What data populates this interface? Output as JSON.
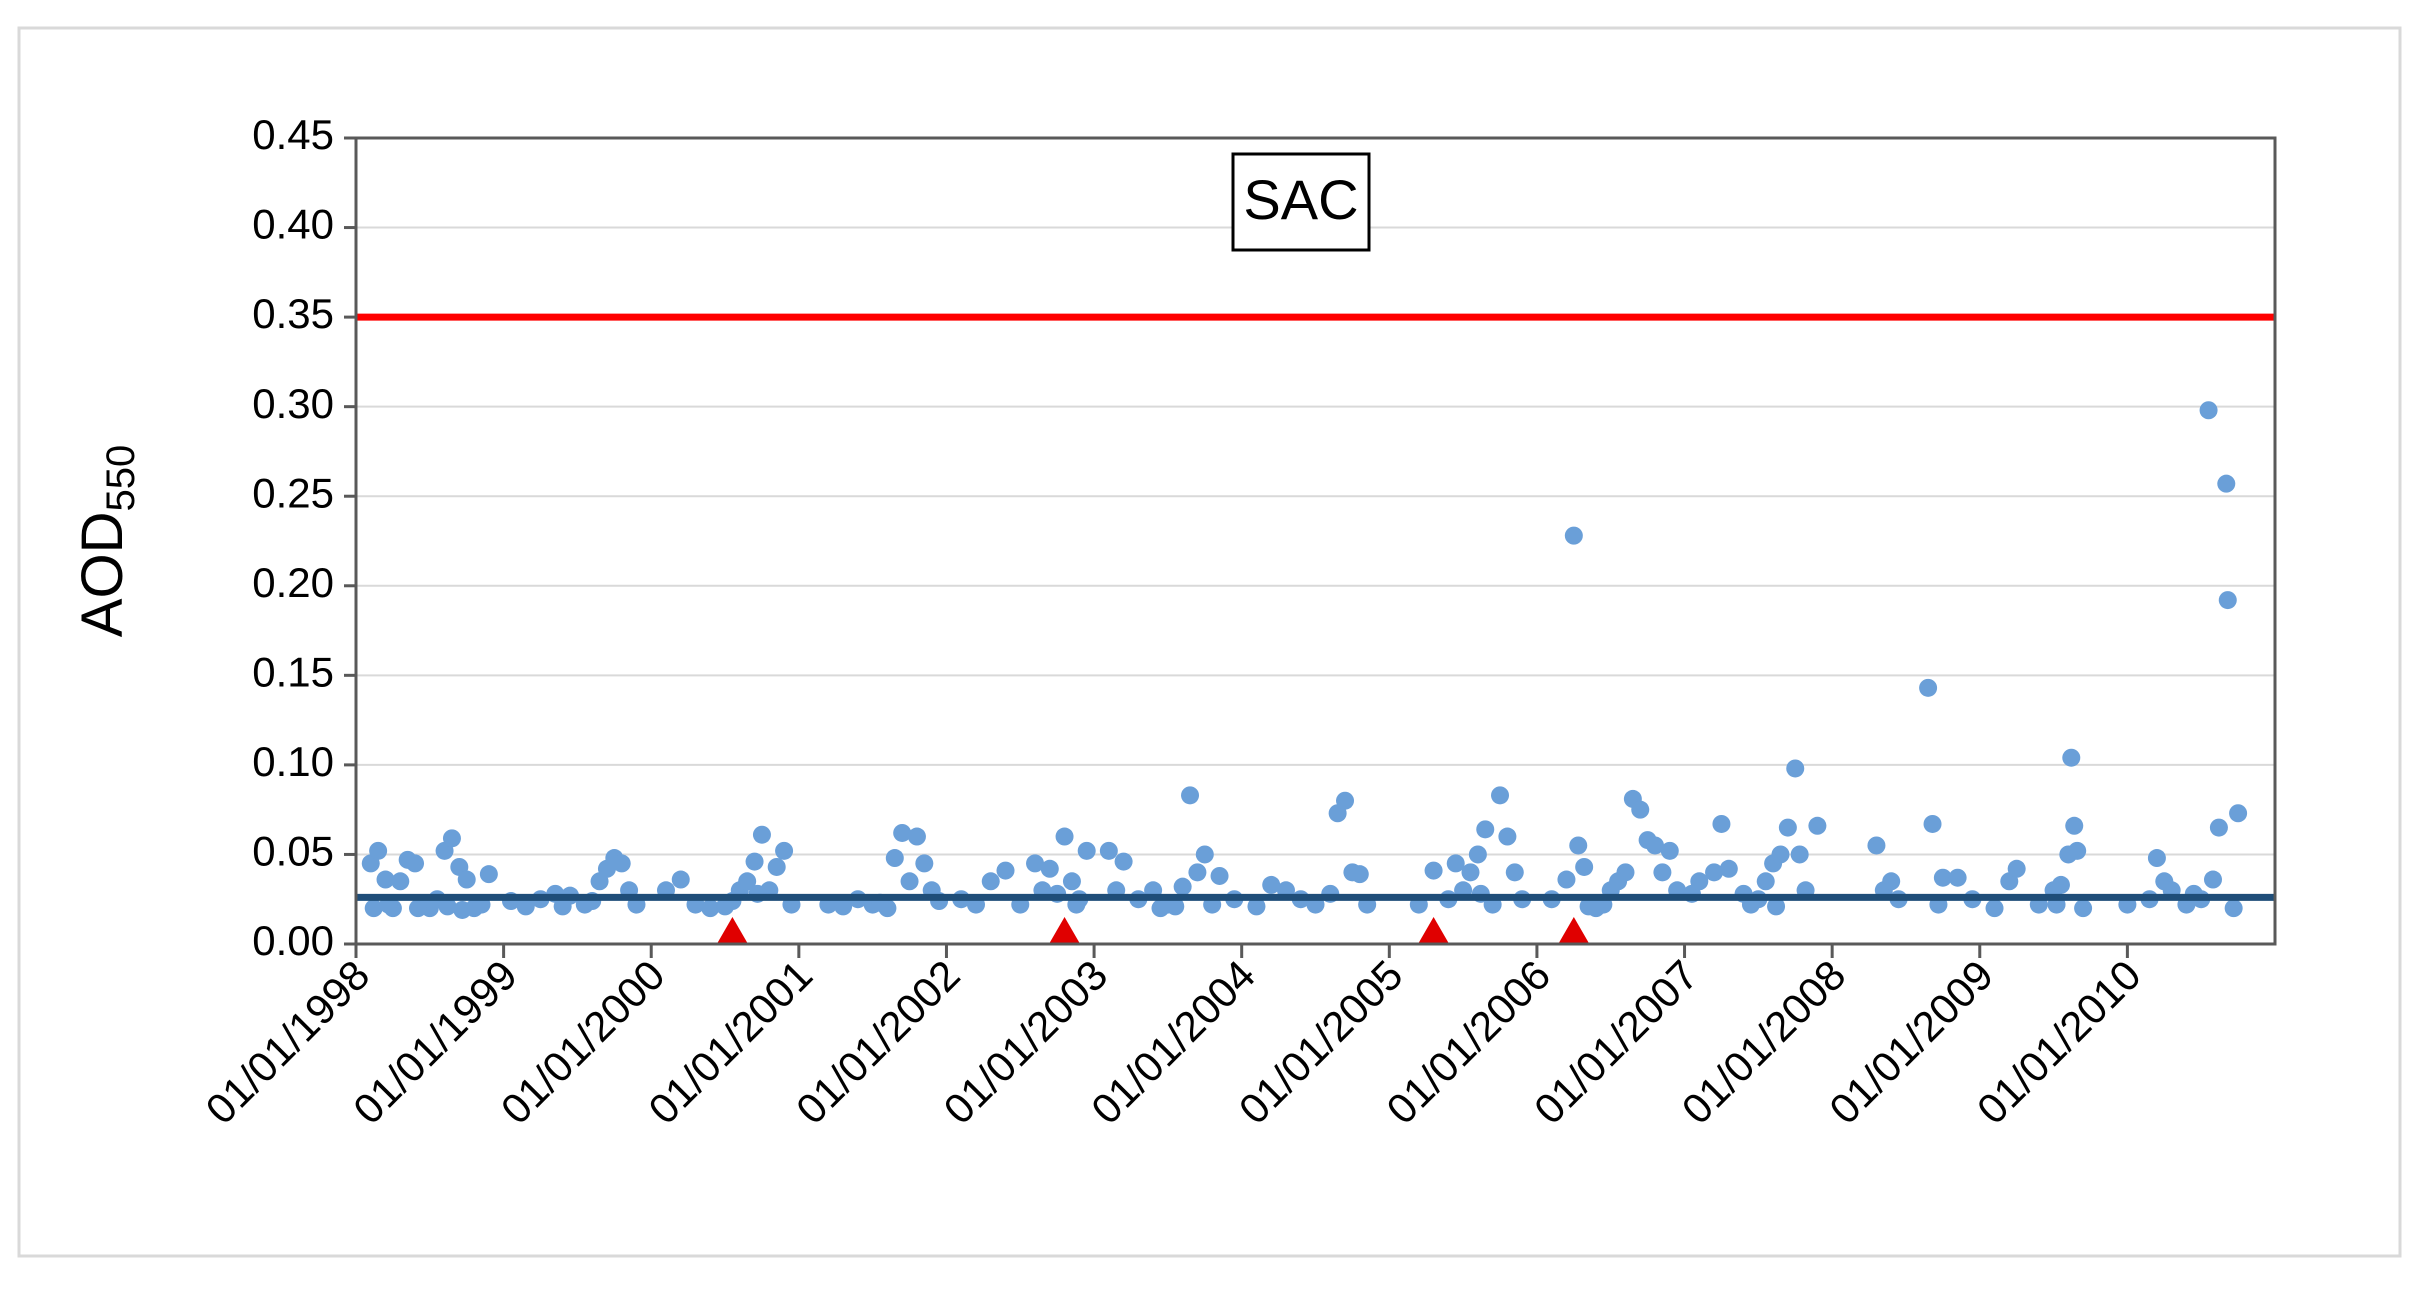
{
  "chart_data": {
    "type": "scatter",
    "title": "SAC",
    "y_label": "AOD",
    "y_label_subscript": "550",
    "color": "#6a9fd8",
    "grid": true,
    "xlim": [
      1998,
      2011
    ],
    "xticks": [
      {
        "value": 1998,
        "label": "01/01/1998"
      },
      {
        "value": 1999,
        "label": "01/01/1999"
      },
      {
        "value": 2000,
        "label": "01/01/2000"
      },
      {
        "value": 2001,
        "label": "01/01/2001"
      },
      {
        "value": 2002,
        "label": "01/01/2002"
      },
      {
        "value": 2003,
        "label": "01/01/2003"
      },
      {
        "value": 2004,
        "label": "01/01/2004"
      },
      {
        "value": 2005,
        "label": "01/01/2005"
      },
      {
        "value": 2006,
        "label": "01/01/2006"
      },
      {
        "value": 2007,
        "label": "01/01/2007"
      },
      {
        "value": 2008,
        "label": "01/01/2008"
      },
      {
        "value": 2009,
        "label": "01/01/2009"
      },
      {
        "value": 2010,
        "label": "01/01/2010"
      }
    ],
    "ylim": [
      0,
      0.45
    ],
    "yticks": [
      {
        "value": 0,
        "label": "0.00"
      },
      0.05,
      {
        "value": 0.1,
        "label": "0.10"
      },
      0.15,
      {
        "value": 0.2,
        "label": "0.20"
      },
      0.25,
      {
        "value": 0.3,
        "label": "0.30"
      },
      0.35,
      {
        "value": 0.4,
        "label": "0.40"
      },
      0.45
    ],
    "reference_lines": [
      {
        "value": 0.35,
        "color": "#ff0000"
      },
      {
        "value": 0.026,
        "color": "#1f4e79"
      }
    ],
    "event_markers": {
      "x": [
        2000.55,
        2002.8,
        2005.3,
        2006.25
      ],
      "color": "#e00000"
    },
    "x": [
      1998.1,
      1998.15,
      1998.2,
      1998.25,
      1998.3,
      1998.35,
      1998.4,
      1998.45,
      1998.5,
      1998.55,
      1998.6,
      1998.65,
      1998.7,
      1998.75,
      1998.8,
      1998.85,
      1998.9,
      1998.12,
      1998.22,
      1998.42,
      1998.62,
      1998.72,
      1999.05,
      1999.15,
      1999.25,
      1999.35,
      1999.45,
      1999.55,
      1999.65,
      1999.7,
      1999.75,
      1999.8,
      1999.85,
      1999.9,
      1999.4,
      1999.6,
      2000.1,
      2000.2,
      2000.3,
      2000.4,
      2000.5,
      2000.6,
      2000.65,
      2000.7,
      2000.75,
      2000.8,
      2000.85,
      2000.9,
      2000.95,
      2000.55,
      2000.72,
      2001.2,
      2001.4,
      2001.5,
      2001.6,
      2001.65,
      2001.7,
      2001.75,
      2001.8,
      2001.85,
      2001.9,
      2001.95,
      2001.55,
      2001.3,
      2002.1,
      2002.2,
      2002.3,
      2002.4,
      2002.5,
      2002.6,
      2002.7,
      2002.8,
      2002.85,
      2002.9,
      2002.95,
      2002.65,
      2002.75,
      2002.88,
      2003.1,
      2003.15,
      2003.2,
      2003.3,
      2003.4,
      2003.5,
      2003.6,
      2003.65,
      2003.7,
      2003.75,
      2003.8,
      2003.85,
      2003.95,
      2003.45,
      2003.55,
      2004.2,
      2004.3,
      2004.4,
      2004.5,
      2004.6,
      2004.65,
      2004.7,
      2004.75,
      2004.8,
      2004.85,
      2004.1,
      2005.2,
      2005.3,
      2005.4,
      2005.45,
      2005.5,
      2005.55,
      2005.6,
      2005.65,
      2005.7,
      2005.75,
      2005.8,
      2005.85,
      2005.9,
      2005.62,
      2006.1,
      2006.2,
      2006.25,
      2006.28,
      2006.32,
      2006.4,
      2006.5,
      2006.55,
      2006.6,
      2006.65,
      2006.7,
      2006.75,
      2006.8,
      2006.85,
      2006.9,
      2006.95,
      2006.45,
      2006.35,
      2007.05,
      2007.1,
      2007.2,
      2007.25,
      2007.3,
      2007.4,
      2007.5,
      2007.55,
      2007.6,
      2007.65,
      2007.7,
      2007.75,
      2007.78,
      2007.82,
      2007.9,
      2007.45,
      2007.62,
      2008.3,
      2008.35,
      2008.4,
      2008.45,
      2008.65,
      2008.68,
      2008.72,
      2008.75,
      2008.85,
      2008.95,
      2009.1,
      2009.2,
      2009.25,
      2009.4,
      2009.5,
      2009.55,
      2009.6,
      2009.62,
      2009.64,
      2009.66,
      2009.7,
      2009.52,
      2010.0,
      2010.15,
      2010.2,
      2010.25,
      2010.3,
      2010.4,
      2010.5,
      2010.55,
      2010.58,
      2010.62,
      2010.67,
      2010.68,
      2010.72,
      2010.75,
      2010.45
    ],
    "values": [
      0.045,
      0.052,
      0.036,
      0.02,
      0.035,
      0.047,
      0.045,
      0.022,
      0.02,
      0.025,
      0.052,
      0.059,
      0.043,
      0.036,
      0.02,
      0.022,
      0.039,
      0.02,
      0.022,
      0.02,
      0.021,
      0.019,
      0.024,
      0.021,
      0.025,
      0.028,
      0.027,
      0.022,
      0.035,
      0.042,
      0.048,
      0.045,
      0.03,
      0.022,
      0.021,
      0.024,
      0.03,
      0.036,
      0.022,
      0.02,
      0.021,
      0.03,
      0.035,
      0.046,
      0.061,
      0.03,
      0.043,
      0.052,
      0.022,
      0.024,
      0.028,
      0.022,
      0.025,
      0.022,
      0.02,
      0.048,
      0.062,
      0.035,
      0.06,
      0.045,
      0.03,
      0.024,
      0.023,
      0.021,
      0.025,
      0.022,
      0.035,
      0.041,
      0.022,
      0.045,
      0.042,
      0.06,
      0.035,
      0.025,
      0.052,
      0.03,
      0.028,
      0.022,
      0.052,
      0.03,
      0.046,
      0.025,
      0.03,
      0.022,
      0.032,
      0.083,
      0.04,
      0.05,
      0.022,
      0.038,
      0.025,
      0.02,
      0.021,
      0.033,
      0.03,
      0.025,
      0.022,
      0.028,
      0.073,
      0.08,
      0.04,
      0.039,
      0.022,
      0.021,
      0.022,
      0.041,
      0.025,
      0.045,
      0.03,
      0.04,
      0.05,
      0.064,
      0.022,
      0.083,
      0.06,
      0.04,
      0.025,
      0.028,
      0.025,
      0.036,
      0.228,
      0.055,
      0.043,
      0.02,
      0.03,
      0.035,
      0.04,
      0.081,
      0.075,
      0.058,
      0.055,
      0.04,
      0.052,
      0.03,
      0.022,
      0.021,
      0.028,
      0.035,
      0.04,
      0.067,
      0.042,
      0.028,
      0.025,
      0.035,
      0.045,
      0.05,
      0.065,
      0.098,
      0.05,
      0.03,
      0.066,
      0.022,
      0.021,
      0.055,
      0.03,
      0.035,
      0.025,
      0.143,
      0.067,
      0.022,
      0.037,
      0.037,
      0.025,
      0.02,
      0.035,
      0.042,
      0.022,
      0.03,
      0.033,
      0.05,
      0.104,
      0.066,
      0.052,
      0.02,
      0.022,
      0.022,
      0.025,
      0.048,
      0.035,
      0.03,
      0.022,
      0.025,
      0.298,
      0.036,
      0.065,
      0.257,
      0.192,
      0.02,
      0.073,
      0.028
    ]
  }
}
